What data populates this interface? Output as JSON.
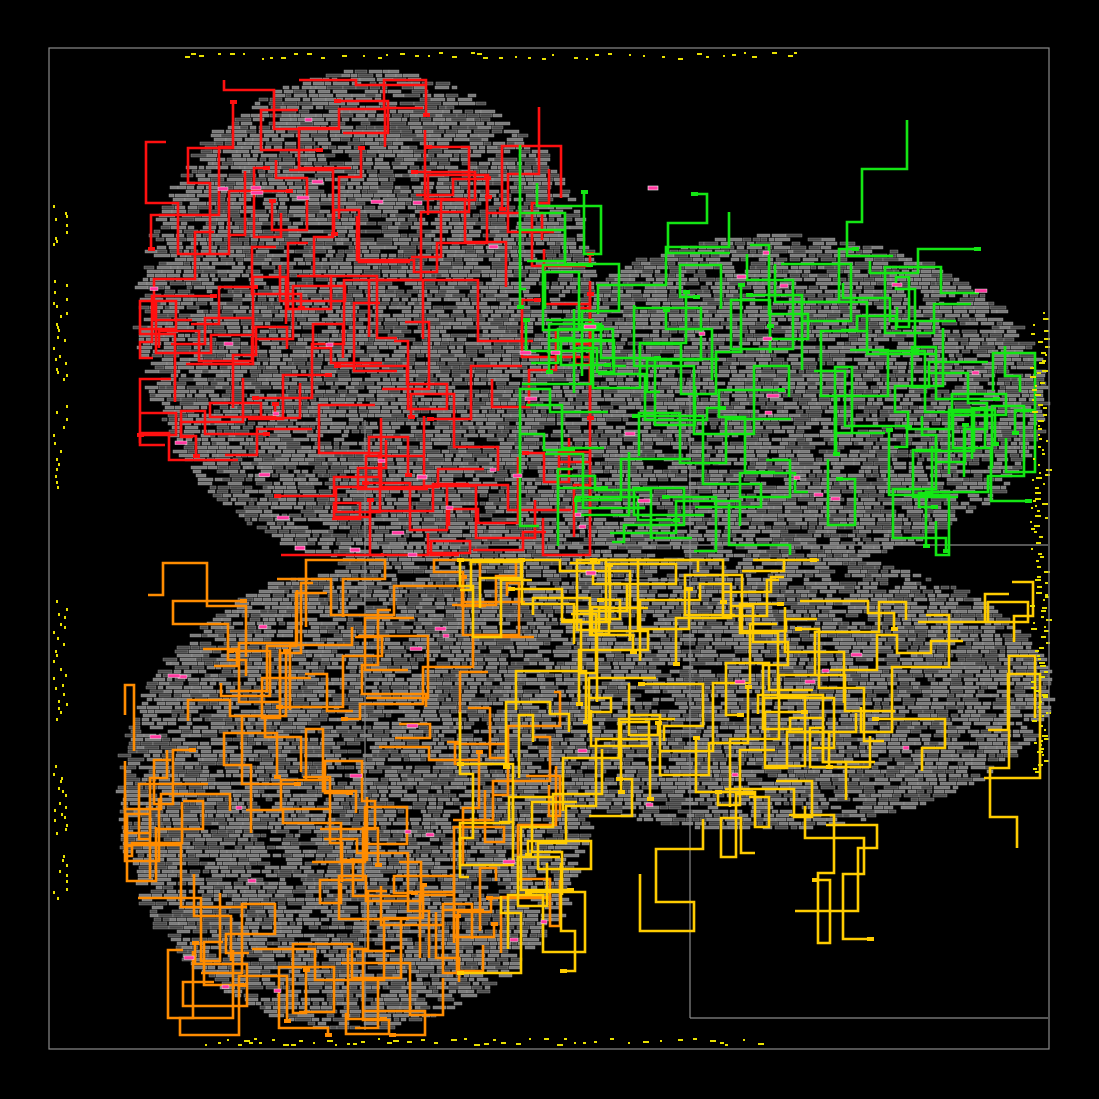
{
  "layout_view": {
    "background": "#000000",
    "die_outline_color": "#8a8a8a",
    "cell_color": "#7a7a7a",
    "cell_outline_color": "#b0b0b0",
    "io_pin_color": "#e8e000",
    "highlight_cell_color": "#ff3aa0",
    "clock_domains": [
      {
        "id": "domain-top-left",
        "color": "#ff1010"
      },
      {
        "id": "domain-top-right",
        "color": "#14e614"
      },
      {
        "id": "domain-bottom-left",
        "color": "#ff8c00"
      },
      {
        "id": "domain-bottom-right",
        "color": "#ffcc00"
      }
    ]
  }
}
